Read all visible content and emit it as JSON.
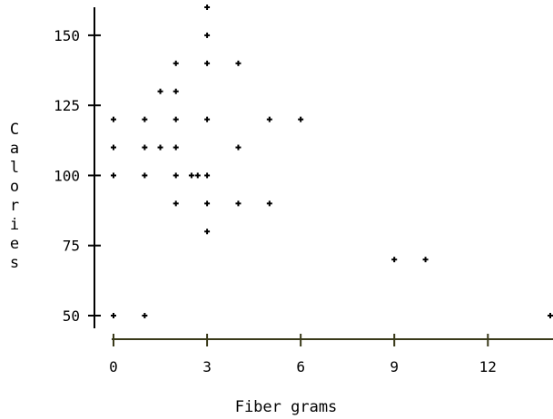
{
  "chart_data": {
    "type": "scatter",
    "title": "",
    "xlabel": "Fiber grams",
    "ylabel": "Calories",
    "xlim": [
      0,
      14
    ],
    "ylim": [
      50,
      160
    ],
    "x_ticks": [
      0,
      3,
      6,
      9,
      12
    ],
    "y_ticks": [
      50,
      75,
      100,
      125,
      150
    ],
    "x_tick_labels": [
      "0",
      "3",
      "6",
      "9",
      "12"
    ],
    "y_tick_labels": [
      "50",
      "75",
      "100",
      "125",
      "150"
    ],
    "grid": false,
    "legend": "none",
    "colors": {
      "points": "#000000",
      "x_axis": "#3a3a1a",
      "y_axis": "#000000",
      "text": "#000000"
    },
    "points": [
      {
        "x": 0,
        "y": 50
      },
      {
        "x": 0,
        "y": 100
      },
      {
        "x": 0,
        "y": 110
      },
      {
        "x": 0,
        "y": 120
      },
      {
        "x": 1,
        "y": 50
      },
      {
        "x": 1,
        "y": 100
      },
      {
        "x": 1,
        "y": 110
      },
      {
        "x": 1,
        "y": 120
      },
      {
        "x": 1.5,
        "y": 110
      },
      {
        "x": 1.5,
        "y": 130
      },
      {
        "x": 2,
        "y": 90
      },
      {
        "x": 2,
        "y": 100
      },
      {
        "x": 2,
        "y": 110
      },
      {
        "x": 2,
        "y": 120
      },
      {
        "x": 2,
        "y": 130
      },
      {
        "x": 2,
        "y": 140
      },
      {
        "x": 2.5,
        "y": 100
      },
      {
        "x": 2.7,
        "y": 100
      },
      {
        "x": 3,
        "y": 80
      },
      {
        "x": 3,
        "y": 90
      },
      {
        "x": 3,
        "y": 100
      },
      {
        "x": 3,
        "y": 120
      },
      {
        "x": 3,
        "y": 140
      },
      {
        "x": 3,
        "y": 150
      },
      {
        "x": 3,
        "y": 160
      },
      {
        "x": 4,
        "y": 90
      },
      {
        "x": 4,
        "y": 110
      },
      {
        "x": 4,
        "y": 140
      },
      {
        "x": 5,
        "y": 90
      },
      {
        "x": 5,
        "y": 120
      },
      {
        "x": 6,
        "y": 120
      },
      {
        "x": 9,
        "y": 70
      },
      {
        "x": 10,
        "y": 70
      },
      {
        "x": 14,
        "y": 50
      }
    ]
  }
}
